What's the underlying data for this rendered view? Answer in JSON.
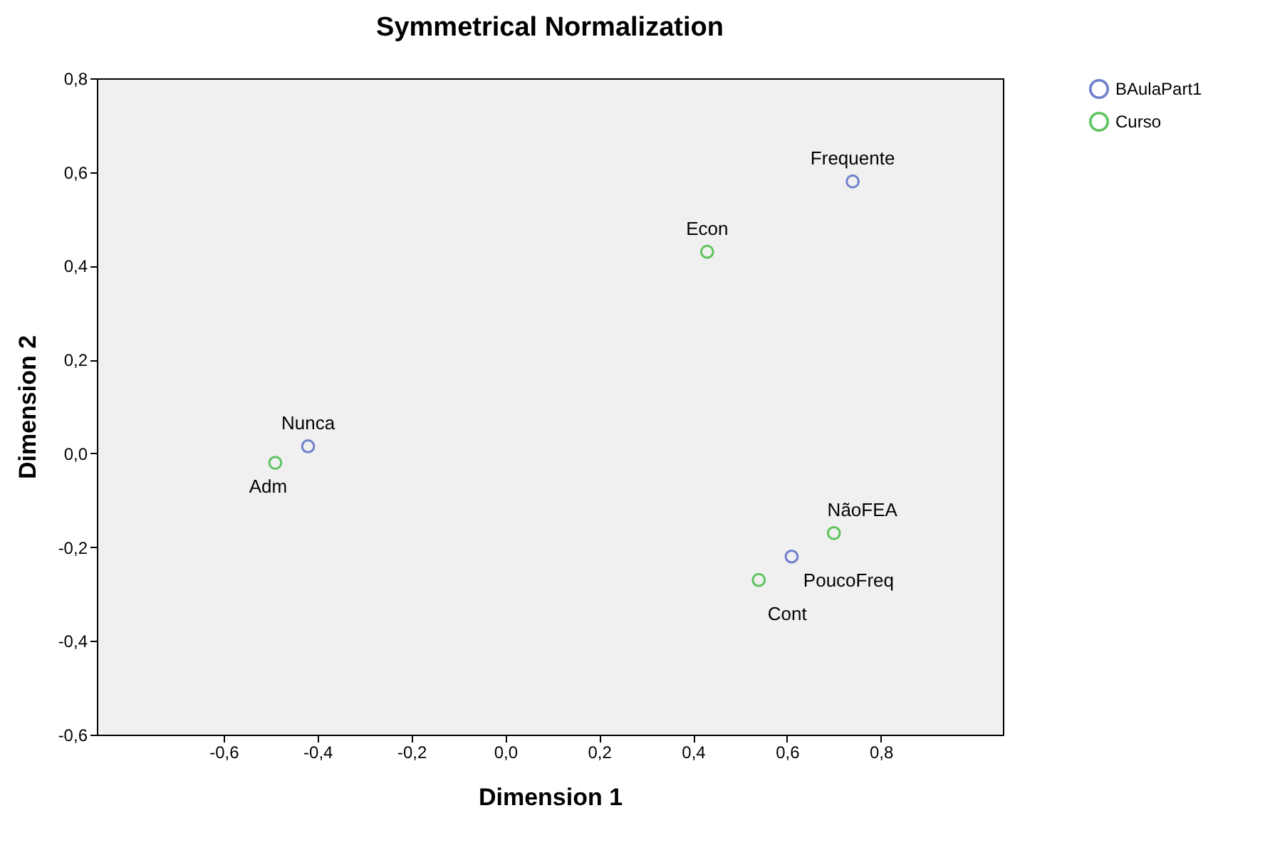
{
  "chart_data": {
    "type": "scatter",
    "title": "Symmetrical Normalization",
    "xlabel": "Dimension 1",
    "ylabel": "Dimension 2",
    "xlim": [
      -0.87,
      1.06
    ],
    "ylim": [
      -0.6,
      0.8
    ],
    "xticks": [
      {
        "value": -0.6,
        "label": "-0,6"
      },
      {
        "value": -0.4,
        "label": "-0,4"
      },
      {
        "value": -0.2,
        "label": "-0,2"
      },
      {
        "value": 0,
        "label": "0,0"
      },
      {
        "value": 0.2,
        "label": "0,2"
      },
      {
        "value": 0.4,
        "label": "0,4"
      },
      {
        "value": 0.6,
        "label": "0,6"
      },
      {
        "value": 0.8,
        "label": "0,8"
      }
    ],
    "yticks": [
      {
        "value": -0.6,
        "label": "-0,6"
      },
      {
        "value": -0.4,
        "label": "-0,4"
      },
      {
        "value": -0.2,
        "label": "-0,2"
      },
      {
        "value": 0,
        "label": "0,0"
      },
      {
        "value": 0.2,
        "label": "0,2"
      },
      {
        "value": 0.4,
        "label": "0,4"
      },
      {
        "value": 0.6,
        "label": "0,6"
      },
      {
        "value": 0.8,
        "label": "0,8"
      }
    ],
    "grid": false,
    "legend": "top right",
    "marker": "circle",
    "series": [
      {
        "name": "BAulaPart1",
        "color": "#6f80cc",
        "x": [
          -0.42,
          0.74,
          0.61
        ],
        "values": [
          0.015,
          0.58,
          -0.22
        ]
      },
      {
        "name": "Curso",
        "color": "#5fc45f",
        "x": [
          -0.49,
          0.43,
          0.7,
          0.54
        ],
        "values": [
          -0.02,
          0.43,
          -0.17,
          -0.27
        ]
      }
    ],
    "annotations": [
      {
        "text": "Nunca",
        "x": -0.42,
        "y": 0.015
      },
      {
        "text": "Frequente",
        "x": 0.74,
        "y": 0.58
      },
      {
        "text": "PoucoFreq",
        "x": 0.61,
        "y": -0.22
      },
      {
        "text": "Adm",
        "x": -0.49,
        "y": -0.02
      },
      {
        "text": "Econ",
        "x": 0.43,
        "y": 0.43
      },
      {
        "text": "NãoFEA",
        "x": 0.7,
        "y": -0.17
      },
      {
        "text": "Cont",
        "x": 0.54,
        "y": -0.27
      }
    ]
  }
}
